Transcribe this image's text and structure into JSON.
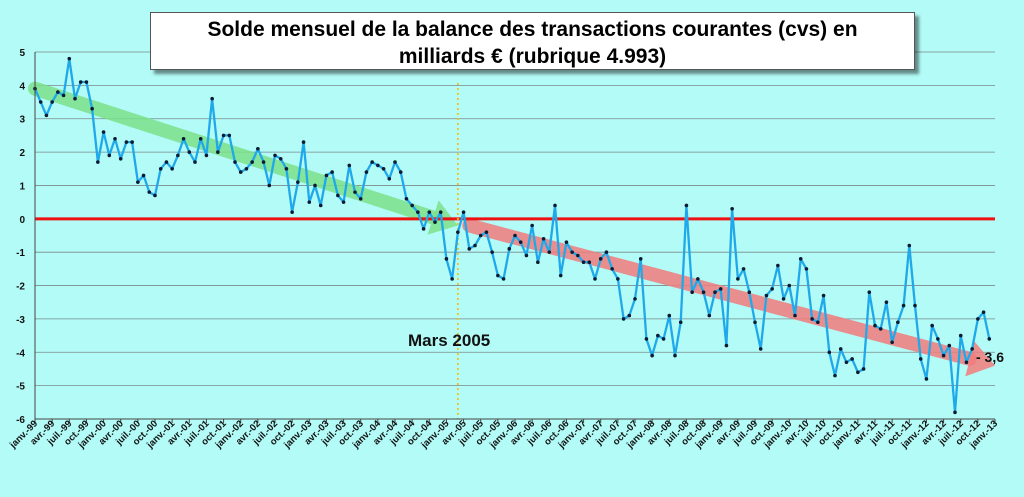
{
  "chart_data": {
    "type": "line",
    "title_line1": "Solde mensuel de la balance des transactions courantes (cvs) en",
    "title_line2": "milliards € (rubrique 4.993)",
    "ylim": [
      -6,
      5
    ],
    "y_ticks": [
      "5",
      "4",
      "3",
      "2",
      "1",
      "0",
      "-1",
      "-2",
      "-3",
      "-4",
      "-5",
      "-6"
    ],
    "x_tick_labels": [
      "janv.-99",
      "avr.-99",
      "juil.-99",
      "oct.-99",
      "janv.-00",
      "avr.-00",
      "juil.-00",
      "oct.-00",
      "janv.-01",
      "avr.-01",
      "juil.-01",
      "oct.-01",
      "janv.-02",
      "avr.-02",
      "juil.-02",
      "oct.-02",
      "janv.-03",
      "avr.-03",
      "juil.-03",
      "oct.-03",
      "janv.-04",
      "avr.-04",
      "juil.-04",
      "oct.-04",
      "janv.-05",
      "avr.-05",
      "juil.-05",
      "oct.-05",
      "janv.-06",
      "avr.-06",
      "juil.-06",
      "oct.-06",
      "janv.-07",
      "avr.-07",
      "juil.-07",
      "oct.-07",
      "janv.-08",
      "avr.-08",
      "juil.-08",
      "oct.-08",
      "janv.-09",
      "avr.-09",
      "juil.-09",
      "oct.-09",
      "janv.-10",
      "avr.-10",
      "juil.-10",
      "oct.-10",
      "janv.-11",
      "avr.-11",
      "juil.-11",
      "oct.-11",
      "janv.-12",
      "avr.-12",
      "juil.-12",
      "oct.-12",
      "janv.-13"
    ],
    "x_start": "janv.-99",
    "frequency": "monthly",
    "series": [
      {
        "values": [
          3.9,
          3.5,
          3.1,
          3.5,
          3.8,
          3.7,
          4.8,
          3.6,
          4.1,
          4.1,
          3.3,
          1.7,
          2.6,
          1.9,
          2.4,
          1.8,
          2.3,
          2.3,
          1.1,
          1.3,
          0.8,
          0.7,
          1.5,
          1.7,
          1.5,
          1.9,
          2.4,
          2.0,
          1.7,
          2.4,
          1.9,
          3.6,
          2.0,
          2.5,
          2.5,
          1.7,
          1.4,
          1.5,
          1.7,
          2.1,
          1.7,
          1.0,
          1.9,
          1.8,
          1.5,
          0.2,
          1.1,
          2.3,
          0.5,
          1.0,
          0.4,
          1.3,
          1.4,
          0.7,
          0.5,
          1.6,
          0.8,
          0.6,
          1.4,
          1.7,
          1.6,
          1.5,
          1.2,
          1.7,
          1.4,
          0.6,
          0.4,
          0.2,
          -0.3,
          0.2,
          -0.1,
          0.2,
          -1.2,
          -1.8,
          -0.4,
          0.2,
          -0.9,
          -0.8,
          -0.5,
          -0.4,
          -1.0,
          -1.7,
          -1.8,
          -0.9,
          -0.5,
          -0.7,
          -1.1,
          -0.2,
          -1.3,
          -0.6,
          -1.0,
          0.4,
          -1.7,
          -0.7,
          -1.0,
          -1.1,
          -1.3,
          -1.3,
          -1.8,
          -1.2,
          -1.0,
          -1.5,
          -1.8,
          -3.0,
          -2.9,
          -2.4,
          -1.2,
          -3.6,
          -4.1,
          -3.5,
          -3.6,
          -2.9,
          -4.1,
          -3.1,
          0.4,
          -2.2,
          -1.8,
          -2.2,
          -2.9,
          -2.2,
          -2.1,
          -3.8,
          0.3,
          -1.8,
          -1.5,
          -2.2,
          -3.1,
          -3.9,
          -2.3,
          -2.1,
          -1.4,
          -2.4,
          -2.0,
          -2.9,
          -1.2,
          -1.5,
          -3.0,
          -3.1,
          -2.3,
          -4.0,
          -4.7,
          -3.9,
          -4.3,
          -4.2,
          -4.6,
          -4.5,
          -2.2,
          -3.2,
          -3.3,
          -2.5,
          -3.7,
          -3.1,
          -2.6,
          -0.8,
          -2.6,
          -4.2,
          -4.8,
          -3.2,
          -3.6,
          -4.1,
          -3.8,
          -5.8,
          -3.5,
          -4.3,
          -3.9,
          -3.0,
          -2.8,
          -3.6
        ]
      }
    ],
    "zero_line_color": "#ee1111",
    "series_color": "#1fa9ea",
    "marker_color": "#0a1b33",
    "annotation_vline_label": "Mars 2005",
    "annotation_vline_color": "#f0c020",
    "annotation_last_value": "- 3,6",
    "trend_up_color": "#7ce08a",
    "trend_down_color": "#f27c7c",
    "background": "#b3fbf7",
    "grid": true
  }
}
